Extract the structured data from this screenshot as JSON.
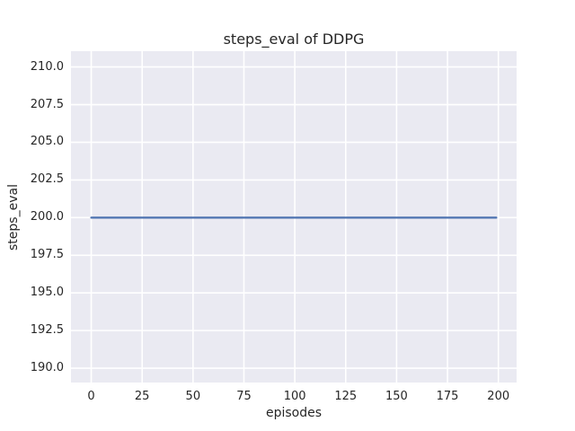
{
  "chart_data": {
    "type": "line",
    "title": "steps_eval of DDPG",
    "xlabel": "episodes",
    "ylabel": "steps_eval",
    "xlim": [
      -9.95,
      208.95
    ],
    "ylim": [
      189.05,
      211.05
    ],
    "xticks": [
      0,
      25,
      50,
      75,
      100,
      125,
      150,
      175,
      200
    ],
    "xtick_labels": [
      "0",
      "25",
      "50",
      "75",
      "100",
      "125",
      "150",
      "175",
      "200"
    ],
    "yticks": [
      190.0,
      192.5,
      195.0,
      197.5,
      200.0,
      202.5,
      205.0,
      207.5,
      210.0
    ],
    "ytick_labels": [
      "190.0",
      "192.5",
      "195.0",
      "197.5",
      "200.0",
      "202.5",
      "205.0",
      "207.5",
      "210.0"
    ],
    "grid": true,
    "legend": "none",
    "series": [
      {
        "name": "steps_eval",
        "x": [
          0,
          199
        ],
        "y": [
          200,
          200
        ]
      }
    ],
    "colors": {
      "plot_background": "#eaeaf2",
      "grid": "#ffffff",
      "line": "#4c72b0",
      "text": "#262626",
      "figure_background": "#ffffff"
    }
  }
}
